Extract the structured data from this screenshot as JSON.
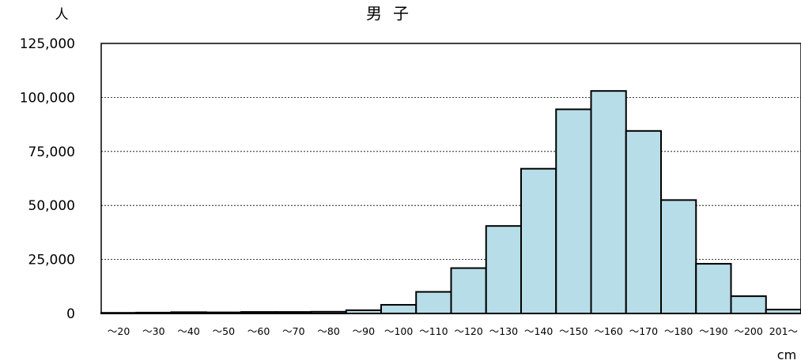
{
  "chart_data": {
    "type": "bar",
    "title": "男子",
    "ylabel": "人",
    "xlabel": "cm",
    "categories": [
      "～20",
      "～30",
      "～40",
      "～50",
      "～60",
      "～70",
      "～80",
      "～90",
      "～100",
      "～110",
      "～120",
      "～130",
      "～140",
      "～150",
      "～160",
      "～170",
      "～180",
      "～190",
      "～200",
      "201～"
    ],
    "values": [
      300,
      400,
      600,
      500,
      700,
      700,
      800,
      1500,
      4000,
      10000,
      21000,
      40500,
      67000,
      94500,
      103000,
      84500,
      52500,
      23000,
      8000,
      1800
    ],
    "ylim": [
      0,
      125000
    ],
    "yticks": [
      0,
      25000,
      50000,
      75000,
      100000,
      125000
    ],
    "ytick_labels": [
      "0",
      "25,000",
      "50,000",
      "75,000",
      "100,000",
      "125,000"
    ],
    "grid": "horizontal-dotted",
    "bar_color": "#b7dde8",
    "edge_color": "#000000"
  }
}
